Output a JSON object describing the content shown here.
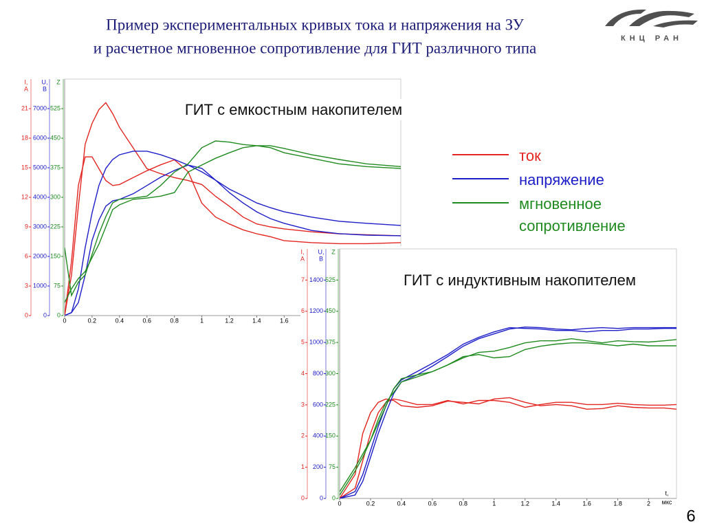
{
  "title": [
    "Пример экспериментальных кривых тока и напряжения на ЗУ",
    "и расчетное мгновенное сопротивление для ГИТ различного типа"
  ],
  "logo_text": "КНЦ РАН",
  "legend": [
    {
      "name": "ток",
      "color": "#e32420"
    },
    {
      "name": "напряжение",
      "color": "#1c1cc8"
    },
    {
      "name": "мгновенное сопротивление",
      "color": "#1f8a1f"
    }
  ],
  "page_number": "6",
  "chart_data": [
    {
      "type": "line",
      "title": "ГИТ с емкостным накопителем",
      "x": [
        0,
        0.05,
        0.1,
        0.15,
        0.2,
        0.25,
        0.3,
        0.35,
        0.4,
        0.5,
        0.6,
        0.7,
        0.8,
        0.9,
        1.0,
        1.1,
        1.2,
        1.3,
        1.4,
        1.5,
        1.6,
        1.8,
        2.0,
        2.2,
        2.45
      ],
      "xlim": [
        0,
        2.45
      ],
      "xticks": [
        0,
        0.2,
        0.4,
        0.6,
        0.8,
        1,
        1.2,
        1.4,
        1.6
      ],
      "ylabel": [
        "I,",
        "A"
      ],
      "ylim": [
        0,
        24
      ],
      "yticks": [
        0,
        3,
        6,
        9,
        12,
        15,
        18,
        21
      ],
      "y2label": [
        "U,",
        "В"
      ],
      "y2lim": [
        0,
        8000
      ],
      "y2ticks": [
        0,
        1000,
        2000,
        3000,
        4000,
        5000,
        6000,
        7000
      ],
      "y3label": [
        "Z"
      ],
      "y3lim": [
        0,
        600
      ],
      "y3ticks": [
        0,
        75,
        150,
        225,
        300,
        375,
        450,
        525
      ],
      "series": [
        {
          "color": "#e32420",
          "axis": "y",
          "values": [
            0,
            4.1,
            11.1,
            17.4,
            19.5,
            20.9,
            21.6,
            20.5,
            19.1,
            17.0,
            14.9,
            14.4,
            14.0,
            13.7,
            13.3,
            12.1,
            11.1,
            10.0,
            9.3,
            9.0,
            8.8,
            8.5,
            8.3,
            8.2,
            8.1
          ]
        },
        {
          "color": "#e32420",
          "axis": "y",
          "values": [
            0,
            5.5,
            13.2,
            16.1,
            16.1,
            14.9,
            13.7,
            13.2,
            13.3,
            14.0,
            14.7,
            15.3,
            15.8,
            14.6,
            11.4,
            10.0,
            9.3,
            8.7,
            8.3,
            8.0,
            7.6,
            7.4,
            7.3,
            7.3,
            7.4
          ]
        },
        {
          "color": "#1c1cc8",
          "axis": "y2",
          "values": [
            0,
            100,
            900,
            2300,
            3470,
            4400,
            4980,
            5280,
            5440,
            5560,
            5560,
            5440,
            5280,
            5090,
            4860,
            4580,
            4280,
            4050,
            3810,
            3650,
            3510,
            3330,
            3190,
            3120,
            3050
          ]
        },
        {
          "color": "#1c1cc8",
          "axis": "y2",
          "values": [
            0,
            100,
            440,
            1370,
            2540,
            3230,
            3700,
            3880,
            3930,
            4120,
            4400,
            4680,
            4910,
            5090,
            4980,
            4580,
            4160,
            3810,
            3510,
            3280,
            3120,
            2880,
            2770,
            2720,
            2700
          ]
        },
        {
          "color": "#1f8a1f",
          "axis": "y3",
          "values": [
            172,
            51,
            85,
            103,
            155,
            208,
            251,
            286,
            295,
            298,
            303,
            330,
            364,
            385,
            426,
            443,
            440,
            434,
            431,
            426,
            413,
            399,
            385,
            378,
            373
          ]
        },
        {
          "color": "#1f8a1f",
          "axis": "y3",
          "values": [
            33,
            68,
            94,
            112,
            147,
            181,
            225,
            269,
            281,
            295,
            298,
            303,
            312,
            364,
            382,
            399,
            413,
            426,
            431,
            431,
            424,
            408,
            396,
            385,
            378
          ]
        }
      ]
    },
    {
      "type": "line",
      "title": "ГИТ с индуктивным накопителем",
      "x": [
        0,
        0.1,
        0.15,
        0.2,
        0.25,
        0.3,
        0.35,
        0.4,
        0.5,
        0.6,
        0.7,
        0.8,
        0.9,
        1.0,
        1.1,
        1.2,
        1.3,
        1.4,
        1.5,
        1.6,
        1.7,
        1.8,
        1.9,
        2.0,
        2.1,
        2.18
      ],
      "xlim": [
        0,
        2.18
      ],
      "xticks": [
        0,
        0.2,
        0.4,
        0.6,
        0.8,
        1,
        1.2,
        1.4,
        1.6,
        1.8,
        2
      ],
      "xlabel": [
        "t,",
        "мкс"
      ],
      "ylabel": [
        "I,",
        "A"
      ],
      "ylim": [
        0,
        8
      ],
      "yticks": [
        0,
        1,
        2,
        3,
        4,
        5,
        6,
        7
      ],
      "y2label": [
        "U,",
        "В"
      ],
      "y2lim": [
        0,
        1600
      ],
      "y2ticks": [
        0,
        200,
        400,
        600,
        800,
        1000,
        1200,
        1400
      ],
      "y3label": [
        "Z"
      ],
      "y3lim": [
        0,
        600
      ],
      "y3ticks": [
        0,
        75,
        150,
        225,
        300,
        375,
        450,
        525
      ],
      "series": [
        {
          "color": "#e32420",
          "axis": "y",
          "values": [
            0,
            0.77,
            2.09,
            2.75,
            3.08,
            3.19,
            3.14,
            2.97,
            2.92,
            2.97,
            3.12,
            3.08,
            3.03,
            3.19,
            3.23,
            3.08,
            2.97,
            3.01,
            2.97,
            2.86,
            2.88,
            2.97,
            2.92,
            2.9,
            2.9,
            2.86
          ]
        },
        {
          "color": "#e32420",
          "axis": "y",
          "values": [
            0,
            0.33,
            1.21,
            2.09,
            2.75,
            3.08,
            3.19,
            3.14,
            3.01,
            3.01,
            3.14,
            3.03,
            3.14,
            3.14,
            3.08,
            2.92,
            3.01,
            3.08,
            3.08,
            3.01,
            3.01,
            3.05,
            3.01,
            2.99,
            2.99,
            3.01
          ]
        },
        {
          "color": "#1c1cc8",
          "axis": "y2",
          "values": [
            0,
            44,
            154,
            308,
            462,
            594,
            703,
            760,
            813,
            866,
            923,
            989,
            1033,
            1068,
            1095,
            1090,
            1086,
            1077,
            1077,
            1068,
            1077,
            1077,
            1086,
            1086,
            1090,
            1090
          ]
        },
        {
          "color": "#1c1cc8",
          "axis": "y2",
          "values": [
            0,
            22,
            110,
            264,
            418,
            550,
            673,
            747,
            791,
            848,
            910,
            976,
            1024,
            1055,
            1086,
            1099,
            1095,
            1086,
            1081,
            1090,
            1095,
            1090,
            1095,
            1095,
            1095,
            1095
          ]
        },
        {
          "color": "#1f8a1f",
          "axis": "y3",
          "values": [
            16,
            74,
            107,
            140,
            190,
            231,
            255,
            280,
            292,
            305,
            321,
            341,
            346,
            338,
            341,
            358,
            366,
            371,
            374,
            374,
            371,
            367,
            371,
            367,
            367,
            367
          ]
        },
        {
          "color": "#1f8a1f",
          "axis": "y3",
          "values": [
            8,
            66,
            99,
            140,
            181,
            222,
            264,
            288,
            297,
            305,
            321,
            338,
            351,
            354,
            363,
            374,
            379,
            379,
            384,
            379,
            374,
            379,
            377,
            376,
            379,
            382
          ]
        }
      ]
    }
  ]
}
